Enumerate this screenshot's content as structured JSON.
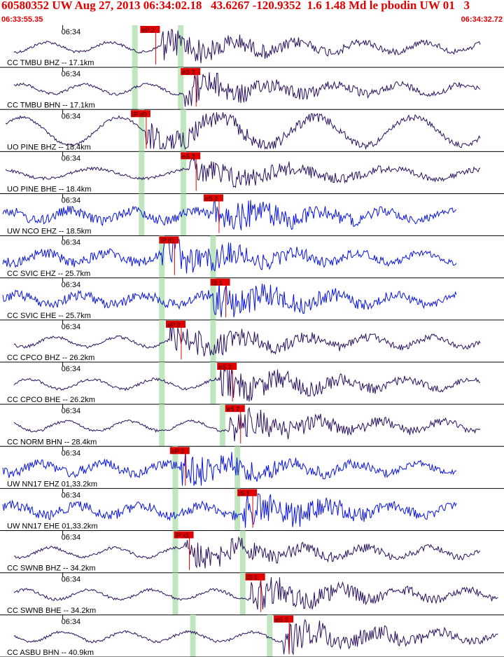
{
  "header": {
    "title": "60580352 UW Aug 27, 2013 06:34:02.18   43.6267 -120.9352  1.6 1.48 Md le pbodin UW 01   3",
    "start_time": "06:33:55.35",
    "end_time": "06:34:32.72"
  },
  "colors": {
    "header_text": "#e00000",
    "trace_broadband": "#2a1060",
    "trace_short_period": "#0a14e0",
    "pick_flag": "#e00000",
    "pick_window": "#bfe6bf",
    "grid": "#000000"
  },
  "chart_data": {
    "type": "seismogram",
    "time_range": [
      "06:33:55.35",
      "06:34:32.72"
    ],
    "minute_tick_label": "06:34",
    "traces": [
      {
        "label": "CC TMBU BHZ -- 17.1km",
        "kind": "broadband",
        "pick": "eP 2",
        "pick_time": 10.4,
        "window_start": 10.0,
        "window_end": 13.4,
        "onset": 12.0
      },
      {
        "label": "CC TMBU BHN -- 17.1km",
        "kind": "broadband",
        "pick": "eS 2",
        "pick_time": 13.4,
        "window_start": 10.0,
        "window_end": 13.4,
        "onset": 13.6
      },
      {
        "label": "UO PINE BHZ -- 18.4km",
        "kind": "broadband",
        "pick": "iP d0",
        "pick_time": 9.7,
        "window_start": 10.5,
        "window_end": 13.6,
        "onset": 10.8
      },
      {
        "label": "UO PINE BHE -- 18.4km",
        "kind": "broadband",
        "pick": "eS 2",
        "pick_time": 13.4,
        "window_start": 10.5,
        "window_end": 13.6,
        "onset": 14.0
      },
      {
        "label": "UW NCO EHZ -- 18.5km",
        "kind": "short_period",
        "pick": "eS 2",
        "pick_time": 15.1,
        "window_start": 10.5,
        "window_end": 13.6,
        "onset": 15.8
      },
      {
        "label": "CC SVIC EHZ -- 25.7km",
        "kind": "short_period",
        "pick": "iP d1",
        "pick_time": 11.8,
        "window_start": 12.0,
        "window_end": 15.8,
        "onset": 12.0
      },
      {
        "label": "CC SVIC EHE -- 25.7km",
        "kind": "short_period",
        "pick": "iS 1",
        "pick_time": 15.6,
        "window_start": 12.0,
        "window_end": 15.8,
        "onset": 15.8
      },
      {
        "label": "CC CPCO BHZ -- 26.2km",
        "kind": "broadband",
        "pick": "eP 3",
        "pick_time": 12.3,
        "window_start": 12.0,
        "window_end": 15.8,
        "onset": 12.6
      },
      {
        "label": "CC CPCO BHE -- 26.2km",
        "kind": "broadband",
        "pick": "eS 2",
        "pick_time": 16.1,
        "window_start": 12.0,
        "window_end": 15.8,
        "onset": 16.3
      },
      {
        "label": "CC NORM BHN -- 28.4km",
        "kind": "broadband",
        "pick": "eS 2",
        "pick_time": 16.7,
        "window_start": 12.0,
        "window_end": 16.5,
        "onset": 17.0
      },
      {
        "label": "UW NN17 EHZ 01,33.2km",
        "kind": "short_period",
        "pick": "eP 2",
        "pick_time": 12.6,
        "window_start": 13.0,
        "window_end": 17.6,
        "onset": 13.4
      },
      {
        "label": "UW NN17 EHE 01,33.2km",
        "kind": "short_period",
        "pick": "iS 1",
        "pick_time": 17.6,
        "window_start": 13.0,
        "window_end": 17.6,
        "onset": 18.0
      },
      {
        "label": "CC SWNB BHZ -- 34.2km",
        "kind": "broadband",
        "pick": "iP x1",
        "pick_time": 12.9,
        "window_start": 13.0,
        "window_end": 18.0,
        "onset": 13.6
      },
      {
        "label": "CC SWNB BHE -- 34.2km",
        "kind": "broadband",
        "pick": "iS 1",
        "pick_time": 18.2,
        "window_start": 13.0,
        "window_end": 18.0,
        "onset": 18.6
      },
      {
        "label": "CC ASBU BHN -- 40.9km",
        "kind": "broadband",
        "pick": "eS 2",
        "pick_time": 20.3,
        "window_start": 14.3,
        "window_end": 20.0,
        "onset": 21.0
      }
    ]
  }
}
